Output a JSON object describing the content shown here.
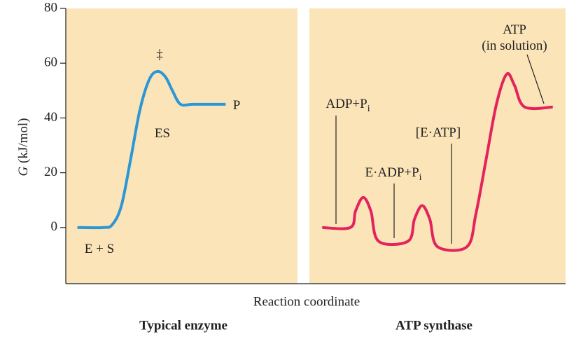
{
  "chart_data": {
    "type": "line",
    "ylabel": {
      "italic": "G",
      "rest": " (kJ/mol)"
    },
    "xlabel": "Reaction coordinate",
    "ylim": [
      -20.5,
      80
    ],
    "yticks": [
      0,
      20,
      40,
      60,
      80
    ],
    "panels": [
      {
        "title": "Typical enzyme",
        "xlim": [
          0,
          100
        ],
        "background": "#fbe4b8",
        "series": [
          {
            "color": "#2b97d6",
            "x": [
              5,
              16,
              20,
              24,
              28,
              32,
              36,
              39.5,
              43,
              46,
              49.5,
              55,
              69
            ],
            "values": [
              0,
              0,
              1,
              8,
              25,
              43,
              54,
              57,
              55,
              50,
              45,
              45,
              45
            ]
          }
        ],
        "annotations": [
          {
            "text": "‡"
          },
          {
            "text": "ES"
          },
          {
            "text": "P"
          },
          {
            "text": "E + S"
          }
        ]
      },
      {
        "title": "ATP synthase",
        "xlim": [
          0,
          100
        ],
        "background": "#fbe4b8",
        "series": [
          {
            "color": "#e3245c",
            "x": [
              5,
              16,
              18,
              21,
              24,
              27,
              38.5,
              41,
              44,
              47,
              50,
              61.5,
              65,
              69,
              73,
              77,
              80,
              84,
              95
            ],
            "values": [
              0,
              0,
              6,
              11,
              6,
              -5,
              -5,
              3,
              8,
              3,
              -7,
              -7,
              5,
              25,
              45,
              56,
              52,
              44,
              44
            ]
          }
        ],
        "annotations": [
          {
            "text": "ADP+P",
            "subscript": "i"
          },
          {
            "text": "E·ADP+P",
            "subscript": "i"
          },
          {
            "text": "[E·ATP]"
          },
          {
            "text": "ATP"
          },
          {
            "text": "(in solution)"
          }
        ]
      }
    ]
  }
}
